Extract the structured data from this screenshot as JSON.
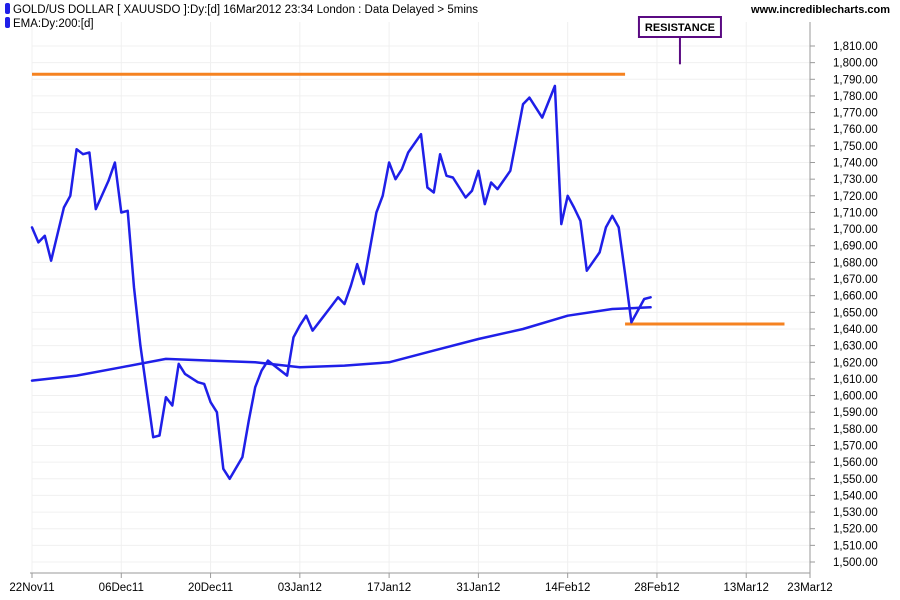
{
  "header": {
    "main_series": "GOLD/US DOLLAR [ XAUUSDO ]:Dy:[d]  16Mar2012 23:34 London : Data Delayed > 5mins",
    "ema_series": "EMA:Dy:200:[d]",
    "site": "www.incrediblecharts.com"
  },
  "chart_data": {
    "type": "line",
    "title": "",
    "xlabel": "",
    "ylabel": "",
    "ylim": [
      1500,
      1810
    ],
    "y_ticks": [
      1500,
      1510,
      1520,
      1530,
      1540,
      1550,
      1560,
      1570,
      1580,
      1590,
      1600,
      1610,
      1620,
      1630,
      1640,
      1650,
      1660,
      1670,
      1680,
      1690,
      1700,
      1710,
      1720,
      1730,
      1740,
      1750,
      1760,
      1770,
      1780,
      1790,
      1800,
      1810
    ],
    "y_tick_labels": [
      "1,500.00",
      "1,510.00",
      "1,520.00",
      "1,530.00",
      "1,540.00",
      "1,550.00",
      "1,560.00",
      "1,570.00",
      "1,580.00",
      "1,590.00",
      "1,600.00",
      "1,610.00",
      "1,620.00",
      "1,630.00",
      "1,640.00",
      "1,650.00",
      "1,660.00",
      "1,670.00",
      "1,680.00",
      "1,690.00",
      "1,700.00",
      "1,710.00",
      "1,720.00",
      "1,730.00",
      "1,740.00",
      "1,750.00",
      "1,760.00",
      "1,770.00",
      "1,780.00",
      "1,790.00",
      "1,800.00",
      "1,810.00"
    ],
    "x_range": [
      "2011-11-22",
      "2012-03-23"
    ],
    "x_tick_dates": [
      "2011-11-22",
      "2011-12-06",
      "2011-12-20",
      "2012-01-03",
      "2012-01-17",
      "2012-01-31",
      "2012-02-14",
      "2012-02-28",
      "2012-03-13",
      "2012-03-23"
    ],
    "x_tick_labels": [
      "22Nov11",
      "06Dec11",
      "20Dec11",
      "03Jan12",
      "17Jan12",
      "31Jan12",
      "14Feb12",
      "28Feb12",
      "13Mar12",
      "23Mar12"
    ],
    "grid": true,
    "series": [
      {
        "name": "GOLD/US DOLLAR [ XAUUSDO ]:Dy:[d]",
        "color": "#1f1fe8",
        "points": [
          [
            "2011-11-22",
            1701
          ],
          [
            "2011-11-23",
            1692
          ],
          [
            "2011-11-24",
            1696
          ],
          [
            "2011-11-25",
            1681
          ],
          [
            "2011-11-27",
            1713
          ],
          [
            "2011-11-28",
            1720
          ],
          [
            "2011-11-29",
            1748
          ],
          [
            "2011-11-30",
            1745
          ],
          [
            "2011-12-01",
            1746
          ],
          [
            "2011-12-02",
            1712
          ],
          [
            "2011-12-04",
            1729
          ],
          [
            "2011-12-05",
            1740
          ],
          [
            "2011-12-06",
            1710
          ],
          [
            "2011-12-07",
            1711
          ],
          [
            "2011-12-08",
            1665
          ],
          [
            "2011-12-09",
            1630
          ],
          [
            "2011-12-11",
            1575
          ],
          [
            "2011-12-12",
            1576
          ],
          [
            "2011-12-13",
            1599
          ],
          [
            "2011-12-14",
            1594
          ],
          [
            "2011-12-15",
            1619
          ],
          [
            "2011-12-16",
            1613
          ],
          [
            "2011-12-18",
            1608
          ],
          [
            "2011-12-19",
            1607
          ],
          [
            "2011-12-20",
            1596
          ],
          [
            "2011-12-21",
            1590
          ],
          [
            "2011-12-22",
            1556
          ],
          [
            "2011-12-23",
            1550
          ],
          [
            "2011-12-25",
            1563
          ],
          [
            "2011-12-26",
            1585
          ],
          [
            "2011-12-27",
            1605
          ],
          [
            "2011-12-28",
            1615
          ],
          [
            "2011-12-29",
            1621
          ],
          [
            "2011-12-30",
            1618
          ],
          [
            "2012-01-01",
            1612
          ],
          [
            "2012-01-02",
            1635
          ],
          [
            "2012-01-03",
            1642
          ],
          [
            "2012-01-04",
            1648
          ],
          [
            "2012-01-05",
            1639
          ],
          [
            "2012-01-06",
            1644
          ],
          [
            "2012-01-08",
            1654
          ],
          [
            "2012-01-09",
            1659
          ],
          [
            "2012-01-10",
            1655
          ],
          [
            "2012-01-11",
            1666
          ],
          [
            "2012-01-12",
            1679
          ],
          [
            "2012-01-13",
            1667
          ],
          [
            "2012-01-15",
            1710
          ],
          [
            "2012-01-16",
            1720
          ],
          [
            "2012-01-17",
            1740
          ],
          [
            "2012-01-18",
            1730
          ],
          [
            "2012-01-19",
            1736
          ],
          [
            "2012-01-20",
            1746
          ],
          [
            "2012-01-22",
            1757
          ],
          [
            "2012-01-23",
            1725
          ],
          [
            "2012-01-24",
            1722
          ],
          [
            "2012-01-25",
            1745
          ],
          [
            "2012-01-26",
            1732
          ],
          [
            "2012-01-27",
            1731
          ],
          [
            "2012-01-29",
            1719
          ],
          [
            "2012-01-30",
            1723
          ],
          [
            "2012-01-31",
            1735
          ],
          [
            "2012-02-01",
            1715
          ],
          [
            "2012-02-02",
            1728
          ],
          [
            "2012-02-03",
            1724
          ],
          [
            "2012-02-05",
            1735
          ],
          [
            "2012-02-06",
            1755
          ],
          [
            "2012-02-07",
            1775
          ],
          [
            "2012-02-08",
            1779
          ],
          [
            "2012-02-09",
            1773
          ],
          [
            "2012-02-10",
            1767
          ],
          [
            "2012-02-12",
            1786
          ],
          [
            "2012-02-13",
            1703
          ],
          [
            "2012-02-14",
            1720
          ],
          [
            "2012-02-15",
            1713
          ],
          [
            "2012-02-16",
            1705
          ],
          [
            "2012-02-17",
            1675
          ],
          [
            "2012-02-19",
            1686
          ],
          [
            "2012-02-20",
            1701
          ],
          [
            "2012-02-21",
            1708
          ],
          [
            "2012-02-22",
            1701
          ],
          [
            "2012-02-23",
            1673
          ],
          [
            "2012-02-24",
            1644
          ],
          [
            "2012-02-26",
            1658
          ],
          [
            "2012-02-27",
            1659
          ]
        ]
      },
      {
        "name": "EMA:Dy:200:[d]",
        "color": "#1f1fe8",
        "points": [
          [
            "2011-11-22",
            1609
          ],
          [
            "2011-11-29",
            1612
          ],
          [
            "2011-12-06",
            1617
          ],
          [
            "2011-12-13",
            1622
          ],
          [
            "2011-12-20",
            1621
          ],
          [
            "2011-12-27",
            1620
          ],
          [
            "2012-01-03",
            1617
          ],
          [
            "2012-01-10",
            1618
          ],
          [
            "2012-01-17",
            1620
          ],
          [
            "2012-01-24",
            1627
          ],
          [
            "2012-01-31",
            1634
          ],
          [
            "2012-02-07",
            1640
          ],
          [
            "2012-02-14",
            1648
          ],
          [
            "2012-02-21",
            1652
          ],
          [
            "2012-02-27",
            1653
          ]
        ]
      }
    ],
    "overlays": [
      {
        "kind": "resistance",
        "color": "#f58220",
        "y": 1793,
        "x_start": "2011-11-22",
        "x_end": "2012-02-23"
      },
      {
        "kind": "support",
        "color": "#f58220",
        "y": 1643,
        "x_start": "2012-02-23",
        "x_end": "2012-03-19"
      }
    ],
    "annotation": {
      "text": "RESISTANCE",
      "color": "#5a0a82",
      "anchor": [
        "2012-02-28",
        1793
      ]
    }
  }
}
